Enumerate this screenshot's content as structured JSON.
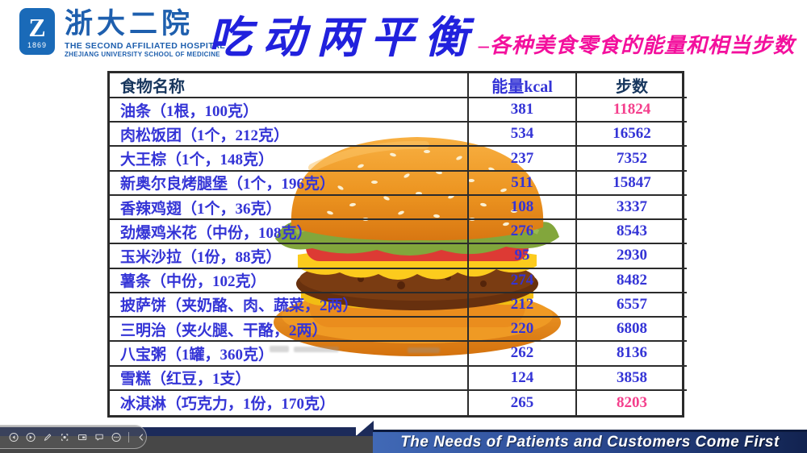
{
  "logo": {
    "emblem_letter": "Z",
    "emblem_year": "1869",
    "name_cn": "浙大二院",
    "name_en_line1": "THE SECOND AFFILIATED HOSPITAL",
    "name_en_line2": "ZHEJIANG UNIVERSITY SCHOOL OF MEDICINE"
  },
  "title": {
    "main": "吃动两平衡",
    "subtitle": "–各种美食零食的能量和相当步数"
  },
  "table": {
    "headers": [
      "食物名称",
      "能量kcal",
      "步数"
    ],
    "rows": [
      {
        "food": "油条（1根，100克）",
        "kcal": "381",
        "steps": "11824",
        "steps_highlight": true
      },
      {
        "food": "肉松饭团（1个，212克）",
        "kcal": "534",
        "steps": "16562",
        "steps_highlight": false
      },
      {
        "food": "大王棕（1个，148克）",
        "kcal": "237",
        "steps": "7352",
        "steps_highlight": false
      },
      {
        "food": "新奥尔良烤腿堡（1个，196克）",
        "kcal": "511",
        "steps": "15847",
        "steps_highlight": false
      },
      {
        "food": "香辣鸡翅（1个，36克）",
        "kcal": "108",
        "steps": "3337",
        "steps_highlight": false
      },
      {
        "food": "劲爆鸡米花（中份，108克）",
        "kcal": "276",
        "steps": "8543",
        "steps_highlight": false
      },
      {
        "food": "玉米沙拉（1份，88克）",
        "kcal": "95",
        "steps": "2930",
        "steps_highlight": false
      },
      {
        "food": "薯条（中份，102克）",
        "kcal": "274",
        "steps": "8482",
        "steps_highlight": false
      },
      {
        "food": "披萨饼（夹奶酪、肉、蔬菜，2两）",
        "kcal": "212",
        "steps": "6557",
        "steps_highlight": false
      },
      {
        "food": "三明治（夹火腿、干酪，2两）",
        "kcal": "220",
        "steps": "6808",
        "steps_highlight": false
      },
      {
        "food": "八宝粥（1罐，360克）",
        "kcal": "262",
        "steps": "8136",
        "steps_highlight": false
      },
      {
        "food": "雪糕（红豆，1支）",
        "kcal": "124",
        "steps": "3858",
        "steps_highlight": false
      },
      {
        "food": "冰淇淋（巧克力，1份，170克）",
        "kcal": "265",
        "steps": "8203",
        "steps_highlight": true
      }
    ]
  },
  "illustration": {
    "type": "hamburger"
  },
  "footer": {
    "slogan": "The Needs of Patients and Customers Come First"
  },
  "toolbar": {
    "icons": [
      "previous-slide",
      "next-slide",
      "pen",
      "laser-pointer",
      "display",
      "comment",
      "more-options",
      "collapse"
    ]
  },
  "colors": {
    "title_blue": "#2121dd",
    "subtitle_magenta": "#f3109d",
    "table_text_blue": "#3434d6",
    "table_header_navy": "#17365d",
    "highlight_pink": "#f43f8c",
    "footer_navy": "#1c2b5a",
    "footer_gray": "#474747",
    "logo_blue": "#1a6ab8"
  }
}
